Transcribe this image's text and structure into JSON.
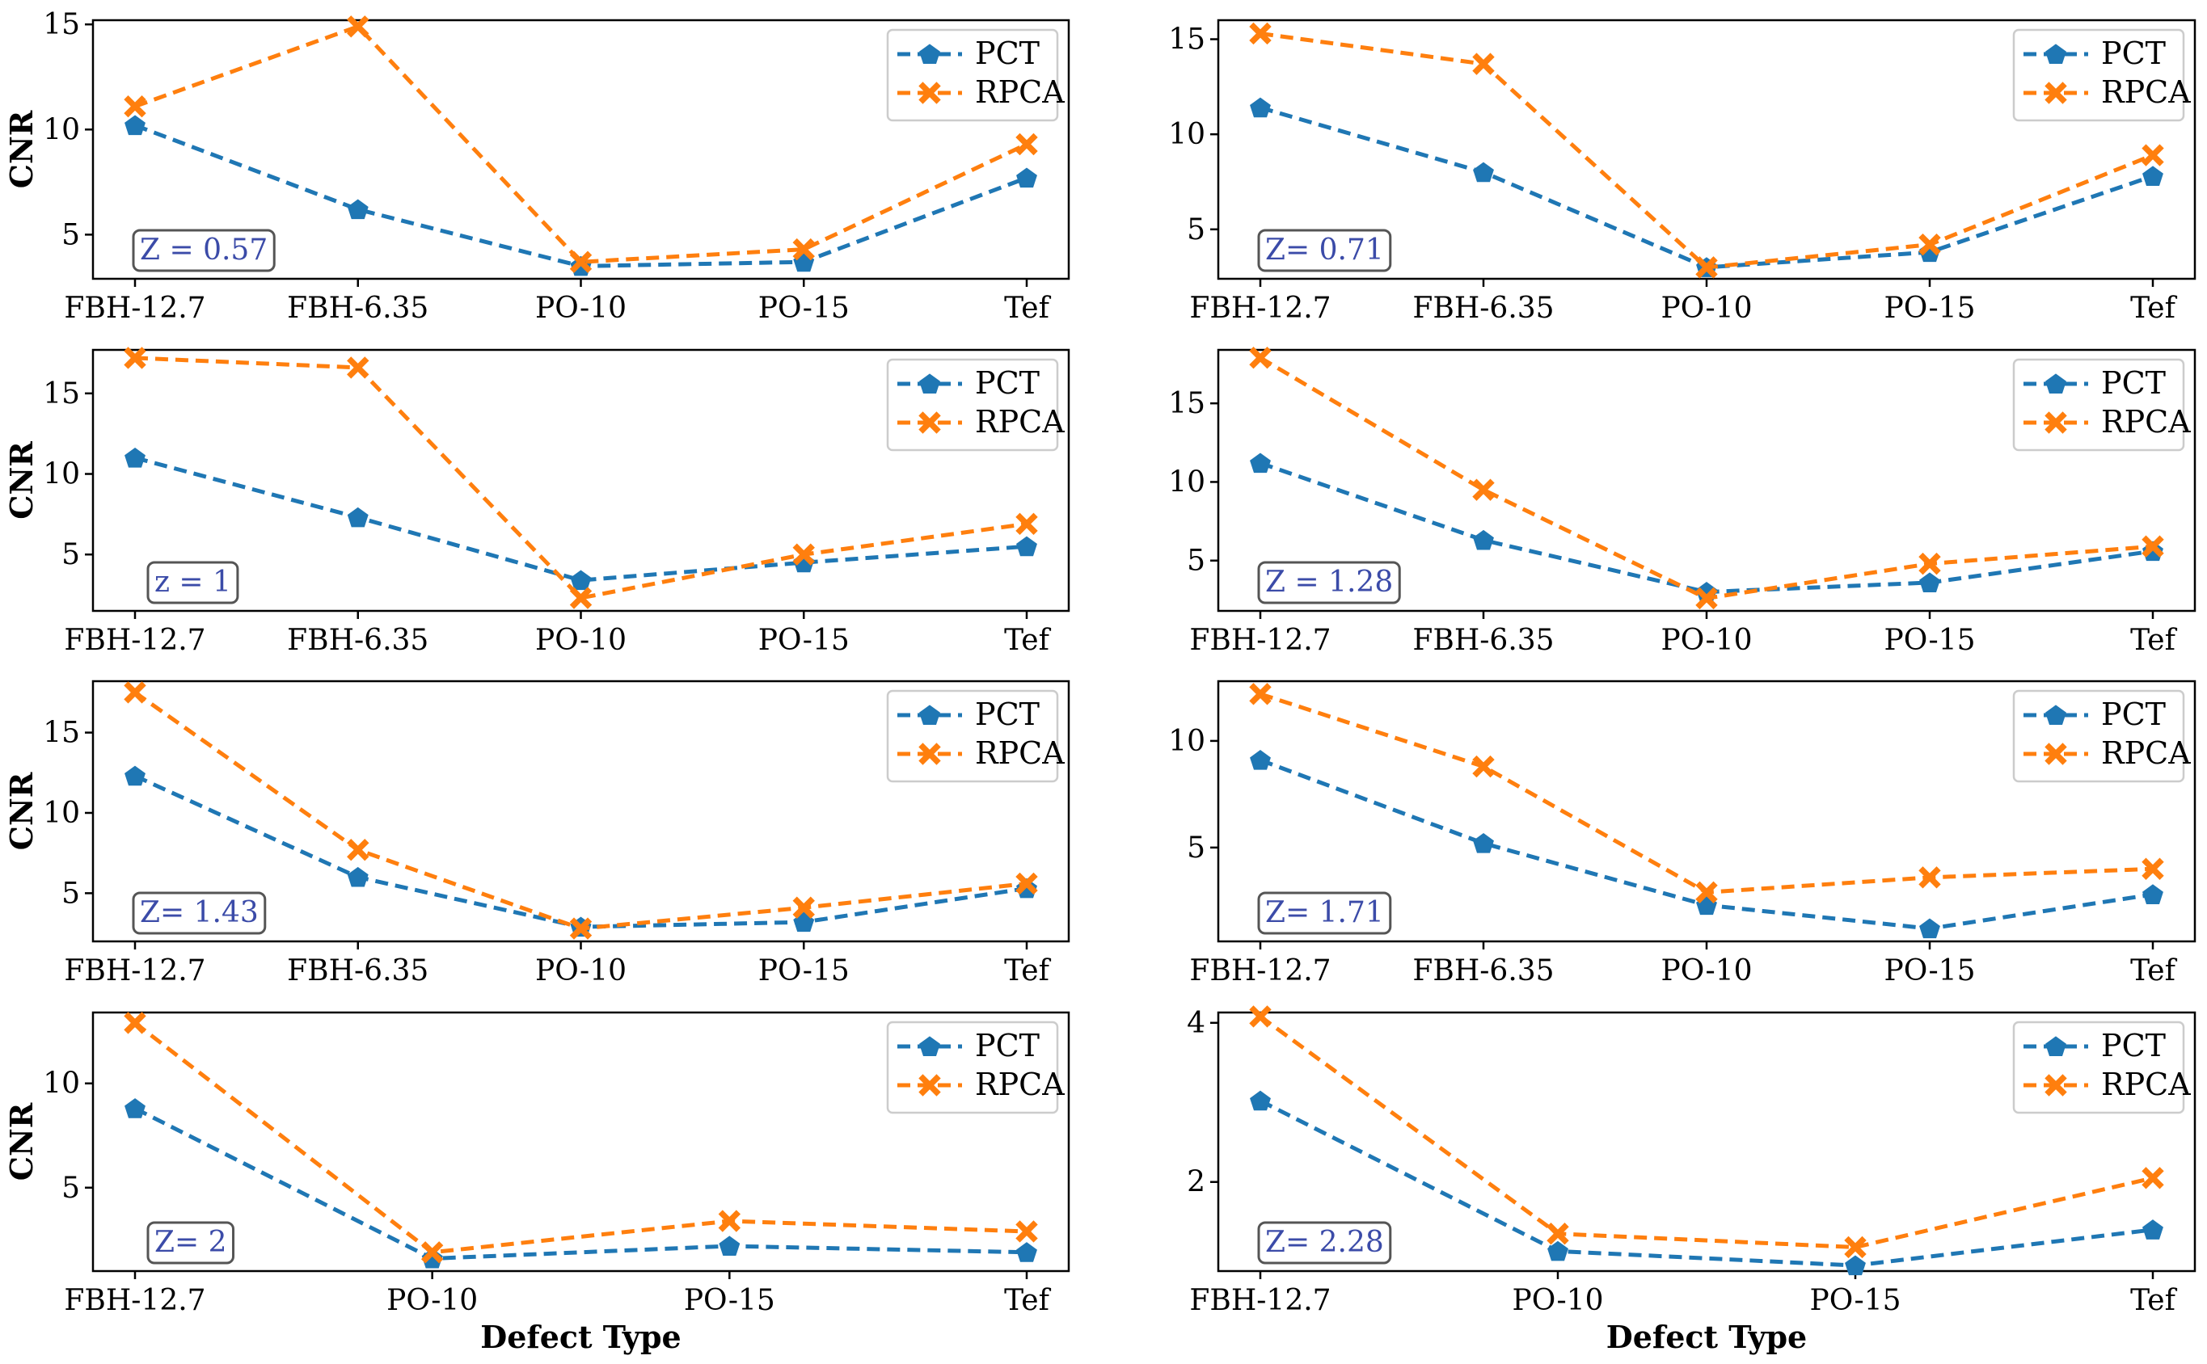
{
  "figure": {
    "legend_entries": [
      "PCT",
      "RPCA"
    ],
    "x_axis_title": "Defect Type",
    "y_axis_title": "CNR",
    "series_colors": {
      "PCT": "#1f77b4",
      "RPCA": "#ff7f0e"
    },
    "annotation_color": "#3b4ba8"
  },
  "chart_data": [
    {
      "type": "line",
      "position": "row1-left",
      "z_label": "Z = 0.57",
      "categories": [
        "FBH-12.7",
        "FBH-6.35",
        "PO-10",
        "PO-15",
        "Tef"
      ],
      "series": [
        {
          "name": "PCT",
          "values": [
            10.2,
            6.2,
            3.5,
            3.7,
            7.7
          ]
        },
        {
          "name": "RPCA",
          "values": [
            11.1,
            14.9,
            3.7,
            4.3,
            9.3
          ]
        }
      ],
      "yticks": [
        5,
        10,
        15
      ],
      "ylim": [
        2.9,
        15.2
      ],
      "ylabel": "CNR",
      "xlabel": "",
      "legend": "top-right"
    },
    {
      "type": "line",
      "position": "row1-right",
      "z_label": "Z= 0.71",
      "categories": [
        "FBH-12.7",
        "FBH-6.35",
        "PO-10",
        "PO-15",
        "Tef"
      ],
      "series": [
        {
          "name": "PCT",
          "values": [
            11.4,
            8.0,
            3.0,
            3.8,
            7.8
          ]
        },
        {
          "name": "RPCA",
          "values": [
            15.3,
            13.7,
            3.0,
            4.2,
            8.9
          ]
        }
      ],
      "yticks": [
        5,
        10,
        15
      ],
      "ylim": [
        2.4,
        16.0
      ],
      "ylabel": "",
      "xlabel": "",
      "legend": "top-right"
    },
    {
      "type": "line",
      "position": "row2-left",
      "z_label": "z = 1",
      "categories": [
        "FBH-12.7",
        "FBH-6.35",
        "PO-10",
        "PO-15",
        "Tef"
      ],
      "series": [
        {
          "name": "PCT",
          "values": [
            11.0,
            7.3,
            3.4,
            4.5,
            5.5
          ]
        },
        {
          "name": "RPCA",
          "values": [
            17.2,
            16.6,
            2.3,
            5.0,
            6.9
          ]
        }
      ],
      "yticks": [
        5,
        10,
        15
      ],
      "ylim": [
        1.5,
        17.7
      ],
      "ylabel": "CNR",
      "xlabel": "",
      "legend": "top-right"
    },
    {
      "type": "line",
      "position": "row2-right",
      "z_label": "Z = 1.28",
      "categories": [
        "FBH-12.7",
        "FBH-6.35",
        "PO-10",
        "PO-15",
        "Tef"
      ],
      "series": [
        {
          "name": "PCT",
          "values": [
            11.2,
            6.3,
            3.0,
            3.6,
            5.6
          ]
        },
        {
          "name": "RPCA",
          "values": [
            17.9,
            9.5,
            2.6,
            4.8,
            5.9
          ]
        }
      ],
      "yticks": [
        5,
        10,
        15
      ],
      "ylim": [
        1.8,
        18.4
      ],
      "ylabel": "",
      "xlabel": "",
      "legend": "top-right"
    },
    {
      "type": "line",
      "position": "row3-left",
      "z_label": "Z= 1.43",
      "categories": [
        "FBH-12.7",
        "FBH-6.35",
        "PO-10",
        "PO-15",
        "Tef"
      ],
      "series": [
        {
          "name": "PCT",
          "values": [
            12.3,
            6.0,
            2.9,
            3.2,
            5.3
          ]
        },
        {
          "name": "RPCA",
          "values": [
            17.5,
            7.7,
            2.8,
            4.1,
            5.6
          ]
        }
      ],
      "yticks": [
        5,
        10,
        15
      ],
      "ylim": [
        2.0,
        18.2
      ],
      "ylabel": "CNR",
      "xlabel": "",
      "legend": "top-right"
    },
    {
      "type": "line",
      "position": "row3-right",
      "z_label": "Z= 1.71",
      "categories": [
        "FBH-12.7",
        "FBH-6.35",
        "PO-10",
        "PO-15",
        "Tef"
      ],
      "series": [
        {
          "name": "PCT",
          "values": [
            9.1,
            5.2,
            2.3,
            1.2,
            2.8
          ]
        },
        {
          "name": "RPCA",
          "values": [
            12.2,
            8.8,
            2.9,
            3.6,
            4.0
          ]
        }
      ],
      "yticks": [
        5,
        10
      ],
      "ylim": [
        0.6,
        12.8
      ],
      "ylabel": "",
      "xlabel": "",
      "legend": "top-right"
    },
    {
      "type": "line",
      "position": "row4-left",
      "z_label": "Z= 2",
      "categories": [
        "FBH-12.7",
        "PO-10",
        "PO-15",
        "Tef"
      ],
      "series": [
        {
          "name": "PCT",
          "values": [
            8.8,
            1.6,
            2.2,
            1.9
          ]
        },
        {
          "name": "RPCA",
          "values": [
            12.9,
            1.9,
            3.4,
            2.9
          ]
        }
      ],
      "yticks": [
        5,
        10
      ],
      "ylim": [
        1.0,
        13.4
      ],
      "ylabel": "CNR",
      "xlabel": "Defect Type",
      "legend": "top-right"
    },
    {
      "type": "line",
      "position": "row4-right",
      "z_label": "Z= 2.28",
      "categories": [
        "FBH-12.7",
        "PO-10",
        "PO-15",
        "Tef"
      ],
      "series": [
        {
          "name": "PCT",
          "values": [
            3.02,
            1.13,
            0.95,
            1.4
          ]
        },
        {
          "name": "RPCA",
          "values": [
            4.08,
            1.35,
            1.18,
            2.05
          ]
        }
      ],
      "yticks": [
        2,
        4
      ],
      "ylim": [
        0.88,
        4.13
      ],
      "ylabel": "",
      "xlabel": "Defect Type",
      "legend": "top-right"
    }
  ]
}
